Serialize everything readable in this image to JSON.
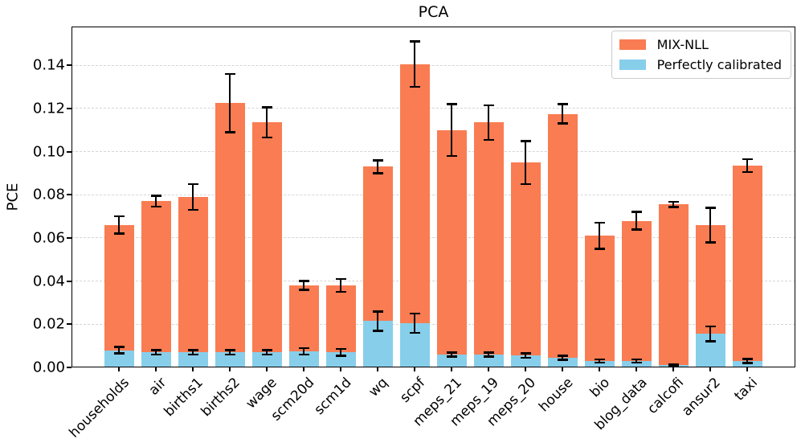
{
  "chart_data": {
    "type": "bar",
    "variant": "overlaid-stacked-with-error-bars",
    "title": "PCA",
    "ylabel": "PCE",
    "xlabel": "",
    "categories": [
      "households",
      "air",
      "births1",
      "births2",
      "wage",
      "scm20d",
      "scm1d",
      "wq",
      "scpf",
      "meps_21",
      "meps_19",
      "meps_20",
      "house",
      "bio",
      "blog_data",
      "calcofi",
      "ansur2",
      "taxi"
    ],
    "series": [
      {
        "name": "MIX-NLL",
        "color": "#FA7C52",
        "values": [
          0.066,
          0.077,
          0.079,
          0.1225,
          0.1135,
          0.038,
          0.038,
          0.093,
          0.1405,
          0.11,
          0.1135,
          0.095,
          0.1175,
          0.061,
          0.068,
          0.0755,
          0.066,
          0.0935
        ],
        "errors": [
          0.004,
          0.0025,
          0.006,
          0.0135,
          0.007,
          0.002,
          0.003,
          0.003,
          0.0105,
          0.012,
          0.008,
          0.01,
          0.0045,
          0.006,
          0.004,
          0.0012,
          0.008,
          0.003
        ]
      },
      {
        "name": "Perfectly calibrated",
        "color": "#87CEEB",
        "values": [
          0.008,
          0.007,
          0.007,
          0.007,
          0.007,
          0.0075,
          0.007,
          0.0215,
          0.0205,
          0.006,
          0.006,
          0.0055,
          0.0045,
          0.003,
          0.003,
          0.001,
          0.0155,
          0.003
        ],
        "errors": [
          0.0015,
          0.001,
          0.001,
          0.001,
          0.001,
          0.0015,
          0.0015,
          0.0045,
          0.0045,
          0.001,
          0.001,
          0.001,
          0.001,
          0.0008,
          0.0008,
          0.0005,
          0.0035,
          0.001
        ]
      }
    ],
    "yticks": [
      0.0,
      0.02,
      0.04,
      0.06,
      0.08,
      0.1,
      0.12,
      0.14
    ],
    "ylim": [
      0,
      0.158
    ],
    "grid": "horizontal-dashed",
    "grid_color": "#d5d5d5",
    "error_bar_color": "#000000",
    "x_tick_rotation": 45,
    "legend_position": "upper right"
  }
}
